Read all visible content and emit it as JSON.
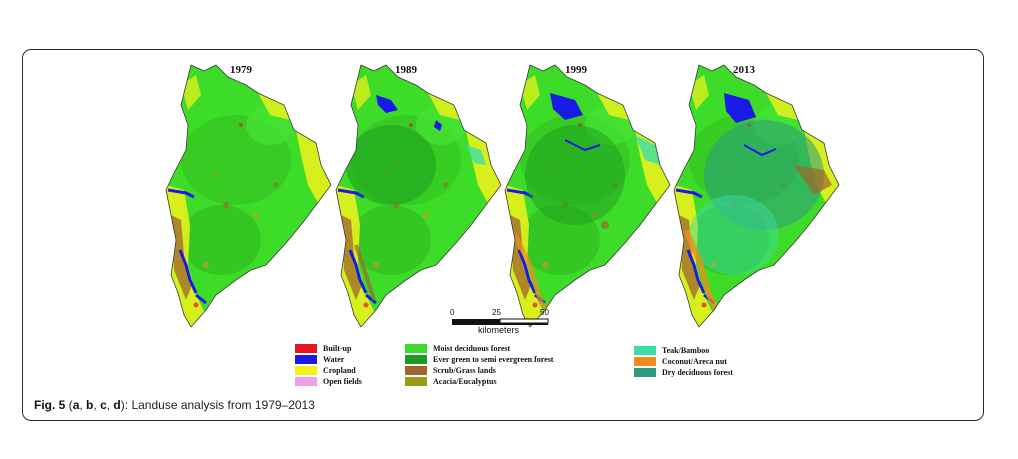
{
  "maps": [
    {
      "year": "1979"
    },
    {
      "year": "1989"
    },
    {
      "year": "1999"
    },
    {
      "year": "2013"
    }
  ],
  "scale_bar": {
    "ticks": [
      "0",
      "25",
      "50"
    ],
    "unit": "kilometers"
  },
  "legend": [
    {
      "label": "Built-up",
      "color": "#e8141e"
    },
    {
      "label": "Water",
      "color": "#1a1ae6"
    },
    {
      "label": "Cropland",
      "color": "#f2f21a"
    },
    {
      "label": "Open fields",
      "color": "#f0a0e6"
    },
    {
      "label": "Moist deciduous  forest",
      "color": "#3cdc28"
    },
    {
      "label": "Ever green to semi evergreen forest",
      "color": "#1e9b1e"
    },
    {
      "label": "Scrub/Grass lands",
      "color": "#a0642d"
    },
    {
      "label": "Acacia/Eucalyptus",
      "color": "#9b9b14"
    },
    {
      "label": "Teak/Bamboo",
      "color": "#3cdcaa"
    },
    {
      "label": "Coconut/Areca nut",
      "color": "#f08c1e"
    },
    {
      "label": "Dry deciduous forest",
      "color": "#2d9b82"
    }
  ],
  "caption": {
    "fig": "Fig. 5",
    "open": " (",
    "a": "a",
    "b": "b",
    "c": "c",
    "d": "d",
    "sep": ", ",
    "close": "):",
    "text": " Landuse analysis from 1979–2013"
  }
}
